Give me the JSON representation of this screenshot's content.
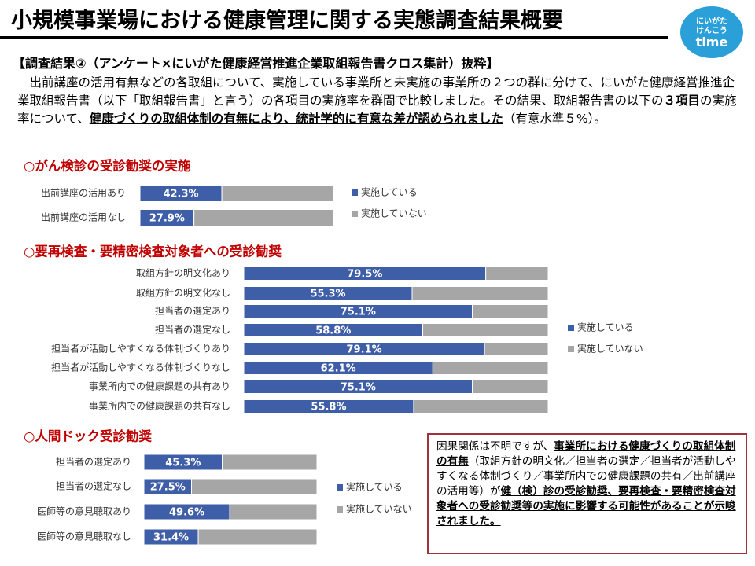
{
  "header": {
    "title": "小規模事業場における健康管理に関する実態調査結果概要",
    "logo": [
      "にいがた",
      "けんこう",
      "time"
    ]
  },
  "subtitle": "【調査結果②（アンケート×にいがた健康経営推進企業取組報告書クロス集計）抜粋】",
  "body": [
    "　出前講座の活用有無などの各取組について、実施している事業所と未実施の事業所の２つの群に分けて、にいがた健康経営推進企業取組報告書（以下「取組報告書」と言う）の各項目の実施率を群間で比較しました。その結果、取組報告書の以下の",
    "３項目",
    "の実施率について、",
    "健康づくりの取組体制の有無により、統計学的に有意な差が認められました",
    "（有意水準５%）。"
  ],
  "note": [
    "因果関係は不明ですが、",
    "事業所における健康づくりの取組体制の有無",
    "（取組方針の明文化／担当者の選定／担当者が活動しやすくなる体制づくり／事業所内での健康課題の共有／出前講座の活用等）が",
    "健（検）診の受診勧奨、要再検査・要精密検査対象者への受診勧奨等の実施に影響する可能性があることが示唆されました。"
  ],
  "chart_data": [
    {
      "type": "bar",
      "title": "○がん検診の受診勧奨の実施",
      "categories": [
        "出前講座の活用あり",
        "出前講座の活用なし"
      ],
      "series": [
        {
          "name": "実施している",
          "color": "#3f5ea8",
          "values": [
            42.3,
            27.9
          ],
          "value_labels": [
            "42.3%",
            "27.9%"
          ]
        },
        {
          "name": "実施していない",
          "color": "#a6a6a6",
          "values": [
            57.7,
            72.1
          ]
        }
      ],
      "xlim": [
        0,
        100
      ]
    },
    {
      "type": "bar",
      "title": "○要再検査・要精密検査対象者への受診勧奨",
      "categories": [
        "取組方針の明文化あり",
        "取組方針の明文化なし",
        "担当者の選定あり",
        "担当者の選定なし",
        "担当者が活動しやすくなる体制づくりあり",
        "担当者が活動しやすくなる体制づくりなし",
        "事業所内での健康課題の共有あり",
        "事業所内での健康課題の共有なし"
      ],
      "series": [
        {
          "name": "実施している",
          "color": "#3f5ea8",
          "values": [
            79.5,
            55.3,
            75.1,
            58.8,
            79.1,
            62.1,
            75.1,
            55.8
          ],
          "value_labels": [
            "79.5%",
            "55.3%",
            "75.1%",
            "58.8%",
            "79.1%",
            "62.1%",
            "75.1%",
            "55.8%"
          ]
        },
        {
          "name": "実施していない",
          "color": "#a6a6a6",
          "values": [
            20.5,
            44.7,
            24.9,
            41.2,
            20.9,
            37.9,
            24.9,
            44.2
          ]
        }
      ],
      "xlim": [
        0,
        100
      ]
    },
    {
      "type": "bar",
      "title": "○人間ドック受診勧奨",
      "categories": [
        "担当者の選定あり",
        "担当者の選定なし",
        "医師等の意見聴取あり",
        "医師等の意見聴取なし"
      ],
      "series": [
        {
          "name": "実施している",
          "color": "#3f5ea8",
          "values": [
            45.3,
            27.5,
            49.6,
            31.4
          ],
          "value_labels": [
            "45.3%",
            "27.5%",
            "49.6%",
            "31.4%"
          ]
        },
        {
          "name": "実施していない",
          "color": "#a6a6a6",
          "values": [
            54.7,
            72.5,
            50.4,
            68.6
          ]
        }
      ],
      "xlim": [
        0,
        100
      ]
    }
  ]
}
